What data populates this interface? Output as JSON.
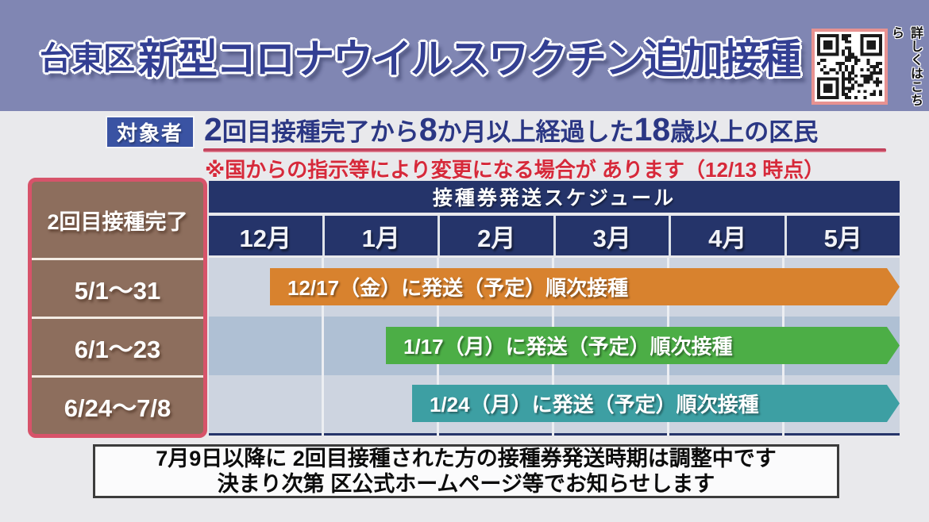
{
  "colors": {
    "header_band": "#8086b3",
    "title_text": "#333f93",
    "badge_blue": "#3a53a3",
    "target_text_navy": "#2b3784",
    "underline_red": "#c2425c",
    "note_red": "#d6293a",
    "table_navy": "#25346a",
    "left_column_brown": "#8d6e5d",
    "left_column_border": "#d7536a",
    "row_light": "#cdd4e0",
    "row_dark": "#afc0d4",
    "arrow_orange": "#d8822e",
    "arrow_green": "#4cae46",
    "arrow_teal": "#3d9fa3",
    "qr_border_pink": "#e79291"
  },
  "header": {
    "ward": "台東区",
    "title": "新型コロナウイルスワクチン追加接種",
    "qr_caption": "詳しくはこちら"
  },
  "target": {
    "label": "対象者",
    "segments": [
      {
        "text": "2"
      },
      {
        "text": " 回目接種完了から "
      },
      {
        "text": "8"
      },
      {
        "text": " か月以上経過した "
      },
      {
        "text": "18"
      },
      {
        "text": " 歳以上の区民"
      }
    ],
    "note": "※国からの指示等により変更になる場合が あります（12/13 時点）"
  },
  "schedule": {
    "corner_header": "2回目接種完了",
    "title": "接種券発送スケジュール",
    "months": [
      "12月",
      "1月",
      "2月",
      "3月",
      "4月",
      "5月"
    ],
    "rows": [
      {
        "period": "5/1～31",
        "arrow_text": "12/17（金）に発送（予定）順次接種",
        "arrow_style": "left:77px;top:13px;width:793px;background:#d8822e"
      },
      {
        "period": "6/1～23",
        "arrow_text": "1/17（月）に発送（予定）順次接種",
        "arrow_style": "left:223px;top:87px;width:647px;background:#4cae46"
      },
      {
        "period": "6/24～7/8",
        "arrow_text": "1/24（月）に発送（予定）順次接種",
        "arrow_style": "left:256px;top:160px;width:614px;background:#3d9fa3"
      }
    ]
  },
  "notice": {
    "line1": "7月9日以降に 2回目接種された方の接種券発送時期は調整中です",
    "line2": "決まり次第 区公式ホームページ等でお知らせします"
  },
  "chart_data": {
    "type": "table",
    "title": "接種券発送スケジュール",
    "categories": [
      "12月",
      "1月",
      "2月",
      "3月",
      "4月",
      "5月"
    ],
    "row_header": "2回目接種完了",
    "rows": [
      {
        "second_dose_period": "5/1～31",
        "mailing": "12/17（金）に発送（予定）順次接種",
        "bar_start_month_axis": 0.53,
        "bar_end_month_axis": 6,
        "color": "#d8822e"
      },
      {
        "second_dose_period": "6/1～23",
        "mailing": "1/17（月）に発送（予定）順次接種",
        "bar_start_month_axis": 1.54,
        "bar_end_month_axis": 6,
        "color": "#4cae46"
      },
      {
        "second_dose_period": "6/24～7/8",
        "mailing": "1/24（月）に発送（予定）順次接種",
        "bar_start_month_axis": 1.77,
        "bar_end_month_axis": 6,
        "color": "#3d9fa3"
      }
    ],
    "axis_range_months": [
      "12月",
      "5月"
    ],
    "legend_position": "none",
    "grid": true
  }
}
